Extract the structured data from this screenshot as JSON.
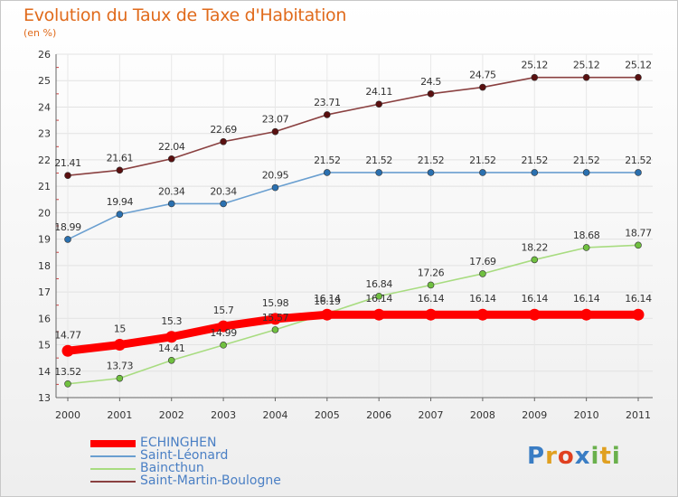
{
  "title": "Evolution du Taux de Taxe d'Habitation",
  "subtitle": "(en %)",
  "logo": {
    "text": "Proxiti",
    "colors": [
      "#3a7dc4",
      "#e0a020",
      "#e04020",
      "#3a7dc4",
      "#6ab04c",
      "#e0a020",
      "#6ab04c"
    ]
  },
  "chart_data": {
    "type": "line",
    "x": [
      "2000",
      "2001",
      "2002",
      "2003",
      "2004",
      "2005",
      "2006",
      "2007",
      "2008",
      "2009",
      "2010",
      "2011"
    ],
    "ylim": [
      13,
      26
    ],
    "yticks": [
      "13",
      "14",
      "15",
      "16",
      "17",
      "18",
      "19",
      "20",
      "21",
      "22",
      "23",
      "24",
      "25",
      "26"
    ],
    "grid": true,
    "legend_position": "bottom-left",
    "series": [
      {
        "name": "ECHINGHEN",
        "color": "#ff0000",
        "values": [
          14.77,
          15,
          15.3,
          15.7,
          15.98,
          16.14,
          16.14,
          16.14,
          16.14,
          16.14,
          16.14,
          16.14
        ],
        "labels": [
          "14.77",
          "15",
          "15.3",
          "15.7",
          "15.98",
          "16.14",
          "16.14",
          "16.14",
          "16.14",
          "16.14",
          "16.14",
          "16.14"
        ],
        "thick": true
      },
      {
        "name": "Saint-Léonard",
        "color": "#6a9fd0",
        "values": [
          18.99,
          19.94,
          20.34,
          20.34,
          20.95,
          21.52,
          21.52,
          21.52,
          21.52,
          21.52,
          21.52,
          21.52
        ],
        "labels": [
          "18.99",
          "19.94",
          "20.34",
          "20.34",
          "20.95",
          "21.52",
          "21.52",
          "21.52",
          "21.52",
          "21.52",
          "21.52",
          "21.52"
        ]
      },
      {
        "name": "Baincthun",
        "color": "#a8dc80",
        "values": [
          13.52,
          13.73,
          14.41,
          14.99,
          15.57,
          16.19,
          16.84,
          17.26,
          17.69,
          18.22,
          18.68,
          18.77
        ],
        "labels": [
          "13.52",
          "13.73",
          "14.41",
          "14.99",
          "15.57",
          "16.19",
          "16.84",
          "17.26",
          "17.69",
          "18.22",
          "18.68",
          "18.77"
        ]
      },
      {
        "name": "Saint-Martin-Boulogne",
        "color": "#8a4040",
        "values": [
          21.41,
          21.61,
          22.04,
          22.69,
          23.07,
          23.71,
          24.11,
          24.5,
          24.75,
          25.12,
          25.12,
          25.12
        ],
        "labels": [
          "21.41",
          "21.61",
          "22.04",
          "22.69",
          "23.07",
          "23.71",
          "24.11",
          "24.5",
          "24.75",
          "25.12",
          "25.12",
          "25.12"
        ]
      }
    ]
  }
}
